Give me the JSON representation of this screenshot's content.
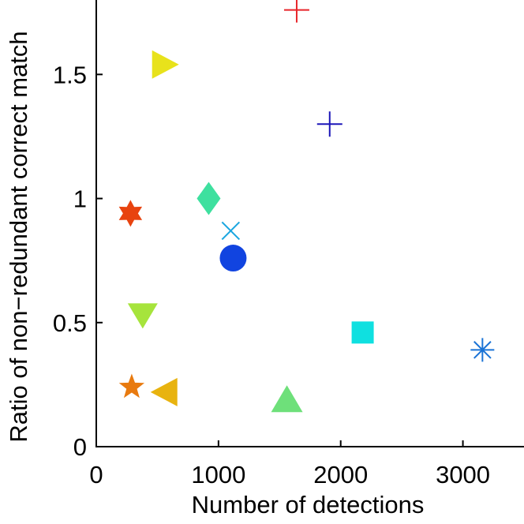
{
  "chart_data": {
    "type": "scatter",
    "title": "",
    "xlabel": "Number of detections",
    "ylabel": "Ratio of non−redundant correct match",
    "xlim": [
      0,
      3500
    ],
    "ylim": [
      0,
      1.8
    ],
    "xticks": [
      0,
      1000,
      2000,
      3000
    ],
    "xtick_labels": [
      "0",
      "1000",
      "2000",
      "3000"
    ],
    "yticks": [
      0,
      0.5,
      1,
      1.5
    ],
    "ytick_labels": [
      "0",
      "0.5",
      "1",
      "1.5"
    ],
    "grid": false,
    "legend": "none",
    "points": [
      {
        "x": 1640,
        "y": 1.76,
        "marker": "plus",
        "color": "#e8252a"
      },
      {
        "x": 560,
        "y": 1.54,
        "marker": "triangle-right",
        "color": "#e8e21b"
      },
      {
        "x": 1910,
        "y": 1.3,
        "marker": "plus",
        "color": "#1c16b8"
      },
      {
        "x": 920,
        "y": 1.0,
        "marker": "diamond",
        "color": "#3ee09f"
      },
      {
        "x": 280,
        "y": 0.94,
        "marker": "hexagram",
        "color": "#e8430f"
      },
      {
        "x": 1100,
        "y": 0.87,
        "marker": "x",
        "color": "#1aa6e0"
      },
      {
        "x": 1120,
        "y": 0.76,
        "marker": "circle",
        "color": "#1144e0"
      },
      {
        "x": 380,
        "y": 0.53,
        "marker": "triangle-down",
        "color": "#a6e43c"
      },
      {
        "x": 2180,
        "y": 0.46,
        "marker": "square",
        "color": "#0fe0e0"
      },
      {
        "x": 3160,
        "y": 0.39,
        "marker": "asterisk",
        "color": "#1a73d6"
      },
      {
        "x": 290,
        "y": 0.24,
        "marker": "pentagram",
        "color": "#e87a0f"
      },
      {
        "x": 560,
        "y": 0.22,
        "marker": "triangle-left",
        "color": "#e8b30f"
      },
      {
        "x": 1560,
        "y": 0.19,
        "marker": "triangle-up",
        "color": "#6ee07a"
      }
    ]
  }
}
